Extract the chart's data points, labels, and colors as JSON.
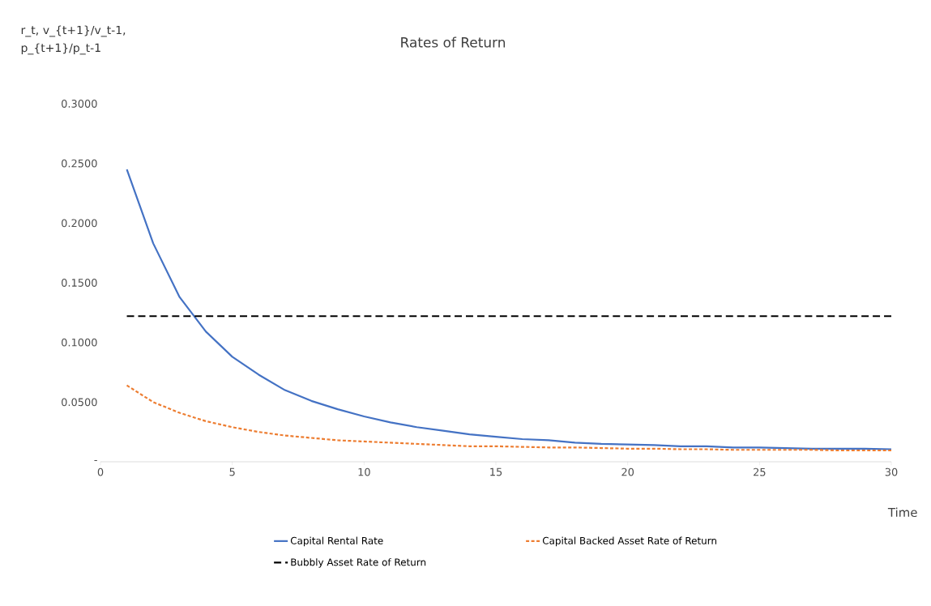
{
  "chart_data": {
    "type": "line",
    "title": "Rates of Return",
    "xlabel": "Time",
    "ylabel": "r_t, v_{t+1}/v_t-1, p_{t+1}/p_t-1",
    "x": [
      1,
      2,
      3,
      4,
      5,
      6,
      7,
      8,
      9,
      10,
      11,
      12,
      13,
      14,
      15,
      16,
      17,
      18,
      19,
      20,
      21,
      22,
      23,
      24,
      25,
      26,
      27,
      28,
      29,
      30
    ],
    "series": [
      {
        "name": "Capital Rental Rate",
        "color": "#4472c4",
        "line_style": "solid",
        "values": [
          0.245,
          0.183,
          0.138,
          0.109,
          0.088,
          0.073,
          0.06,
          0.051,
          0.044,
          0.038,
          0.033,
          0.029,
          0.026,
          0.023,
          0.021,
          0.019,
          0.018,
          0.016,
          0.015,
          0.0145,
          0.014,
          0.013,
          0.013,
          0.012,
          0.012,
          0.0115,
          0.011,
          0.011,
          0.011,
          0.0105
        ]
      },
      {
        "name": "Capital Backed Asset Rate of Return",
        "color": "#ed7d31",
        "line_style": "dotted",
        "values": [
          0.064,
          0.05,
          0.041,
          0.034,
          0.029,
          0.025,
          0.022,
          0.02,
          0.018,
          0.017,
          0.016,
          0.015,
          0.014,
          0.013,
          0.013,
          0.0125,
          0.012,
          0.012,
          0.0115,
          0.011,
          0.011,
          0.0105,
          0.0105,
          0.01,
          0.01,
          0.01,
          0.01,
          0.0095,
          0.0095,
          0.0095
        ]
      },
      {
        "name": "Bubbly Asset Rate of Return",
        "color": "#000000",
        "line_style": "dashed",
        "values": [
          0.122,
          0.122,
          0.122,
          0.122,
          0.122,
          0.122,
          0.122,
          0.122,
          0.122,
          0.122,
          0.122,
          0.122,
          0.122,
          0.122,
          0.122,
          0.122,
          0.122,
          0.122,
          0.122,
          0.122,
          0.122,
          0.122,
          0.122,
          0.122,
          0.122,
          0.122,
          0.122,
          0.122,
          0.122,
          0.122
        ]
      }
    ],
    "xlim": [
      0,
      30
    ],
    "ylim": [
      0,
      0.3
    ],
    "xticks": [
      0,
      5,
      10,
      15,
      20,
      25,
      30
    ],
    "yticks": [
      {
        "value": 0,
        "label": "-"
      },
      {
        "value": 0.05,
        "label": "0.0500"
      },
      {
        "value": 0.1,
        "label": "0.1000"
      },
      {
        "value": 0.15,
        "label": "0.1500"
      },
      {
        "value": 0.2,
        "label": "0.2000"
      },
      {
        "value": 0.25,
        "label": "0.2500"
      },
      {
        "value": 0.3,
        "label": "0.3000"
      }
    ],
    "grid": false,
    "legend": "bottom",
    "marker": "none"
  }
}
